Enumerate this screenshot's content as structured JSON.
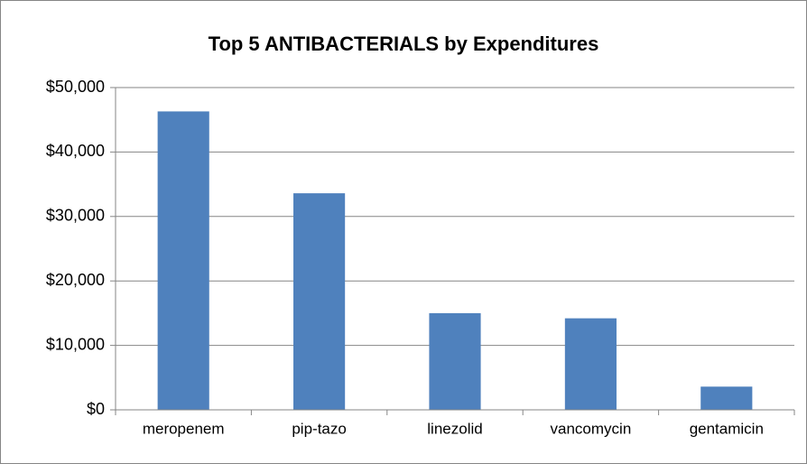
{
  "chart_data": {
    "type": "bar",
    "title": "Top 5 ANTIBACTERIALS by Expenditures",
    "categories": [
      "meropenem",
      "pip-tazo",
      "linezolid",
      "vancomycin",
      "gentamicin"
    ],
    "values": [
      46300,
      33600,
      15000,
      14200,
      3600
    ],
    "color": "#4f81bd",
    "ylim": [
      0,
      50000
    ],
    "yticks": [
      {
        "value": 0,
        "label": "$0"
      },
      {
        "value": 10000,
        "label": "$10,000"
      },
      {
        "value": 20000,
        "label": "$20,000"
      },
      {
        "value": 30000,
        "label": "$30,000"
      },
      {
        "value": 40000,
        "label": "$40,000"
      },
      {
        "value": 50000,
        "label": "$50,000"
      }
    ],
    "grid": true
  }
}
